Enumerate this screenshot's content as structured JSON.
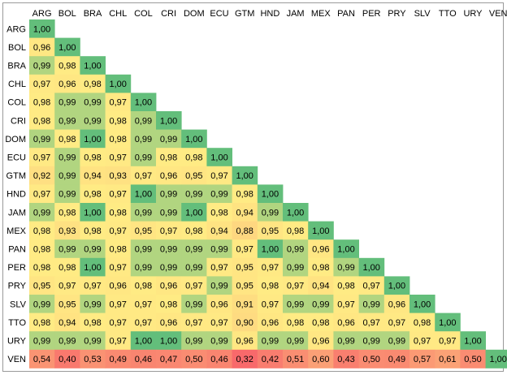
{
  "chart_data": {
    "type": "heatmap",
    "title": "",
    "xlabel": "",
    "ylabel": "",
    "matrix_shape": "lower-triangular",
    "color_scale": {
      "low": "#f8696b",
      "mid": "#ffeb84",
      "high": "#63be7b"
    },
    "grid": false,
    "legend": "none",
    "x_labels": [
      "ARG",
      "BOL",
      "BRA",
      "CHL",
      "COL",
      "CRI",
      "DOM",
      "ECU",
      "GTM",
      "HND",
      "JAM",
      "MEX",
      "PAN",
      "PER",
      "PRY",
      "SLV",
      "TTO",
      "URY",
      "VEN"
    ],
    "y_labels": [
      "ARG",
      "BOL",
      "BRA",
      "CHL",
      "COL",
      "CRI",
      "DOM",
      "ECU",
      "GTM",
      "HND",
      "JAM",
      "MEX",
      "PAN",
      "PER",
      "PRY",
      "SLV",
      "TTO",
      "URY",
      "VEN"
    ],
    "values": [
      [
        "1,00"
      ],
      [
        "0,96",
        "1,00"
      ],
      [
        "0,99",
        "0,98",
        "1,00"
      ],
      [
        "0,97",
        "0,96",
        "0,98",
        "1,00"
      ],
      [
        "0,98",
        "0,99",
        "0,99",
        "0,97",
        "1,00"
      ],
      [
        "0,98",
        "0,99",
        "0,99",
        "0,98",
        "0,99",
        "1,00"
      ],
      [
        "0,99",
        "0,98",
        "1,00",
        "0,98",
        "0,99",
        "0,99",
        "1,00"
      ],
      [
        "0,97",
        "0,99",
        "0,98",
        "0,97",
        "0,99",
        "0,98",
        "0,98",
        "1,00"
      ],
      [
        "0,92",
        "0,99",
        "0,94",
        "0,93",
        "0,97",
        "0,96",
        "0,95",
        "0,97",
        "1,00"
      ],
      [
        "0,97",
        "0,99",
        "0,98",
        "0,97",
        "1,00",
        "0,99",
        "0,99",
        "0,99",
        "0,98",
        "1,00"
      ],
      [
        "0,99",
        "0,98",
        "1,00",
        "0,98",
        "0,99",
        "0,99",
        "1,00",
        "0,98",
        "0,94",
        "0,99",
        "1,00"
      ],
      [
        "0,98",
        "0,93",
        "0,98",
        "0,97",
        "0,95",
        "0,97",
        "0,98",
        "0,94",
        "0,88",
        "0,95",
        "0,98",
        "1,00"
      ],
      [
        "0,98",
        "0,99",
        "0,99",
        "0,98",
        "0,99",
        "0,99",
        "0,99",
        "0,99",
        "0,97",
        "1,00",
        "0,99",
        "0,96",
        "1,00"
      ],
      [
        "0,98",
        "0,98",
        "1,00",
        "0,97",
        "0,99",
        "0,99",
        "0,99",
        "0,97",
        "0,95",
        "0,97",
        "0,99",
        "0,98",
        "0,99",
        "1,00"
      ],
      [
        "0,95",
        "0,97",
        "0,97",
        "0,96",
        "0,98",
        "0,96",
        "0,97",
        "0,99",
        "0,95",
        "0,98",
        "0,97",
        "0,94",
        "0,98",
        "0,97",
        "1,00"
      ],
      [
        "0,99",
        "0,95",
        "0,99",
        "0,97",
        "0,97",
        "0,98",
        "0,99",
        "0,96",
        "0,91",
        "0,97",
        "0,99",
        "0,99",
        "0,97",
        "0,99",
        "0,96",
        "1,00"
      ],
      [
        "0,98",
        "0,94",
        "0,98",
        "0,97",
        "0,97",
        "0,96",
        "0,97",
        "0,97",
        "0,90",
        "0,96",
        "0,98",
        "0,98",
        "0,96",
        "0,97",
        "0,97",
        "0,98",
        "1,00"
      ],
      [
        "0,99",
        "0,99",
        "0,99",
        "0,97",
        "1,00",
        "1,00",
        "0,99",
        "0,99",
        "0,96",
        "0,99",
        "0,99",
        "0,96",
        "0,99",
        "0,99",
        "0,99",
        "0,97",
        "0,97",
        "1,00"
      ],
      [
        "0,54",
        "0,40",
        "0,53",
        "0,49",
        "0,46",
        "0,47",
        "0,50",
        "0,46",
        "0,32",
        "0,42",
        "0,51",
        "0,60",
        "0,43",
        "0,50",
        "0,49",
        "0,57",
        "0,61",
        "0,50",
        "1,00"
      ]
    ]
  }
}
